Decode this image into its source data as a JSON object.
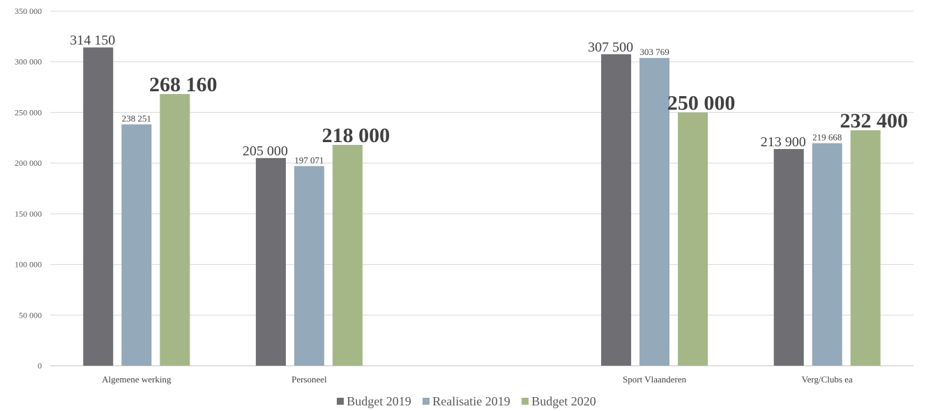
{
  "chart_data": {
    "type": "bar",
    "title": "",
    "xlabel": "",
    "ylabel": "",
    "categories": [
      "Algemene werking",
      "Personeel",
      "",
      "Sport Vlaanderen",
      "Verg/Clubs ea"
    ],
    "ylim": [
      0,
      350000
    ],
    "yticks": [
      0,
      50000,
      100000,
      150000,
      200000,
      250000,
      300000,
      350000
    ],
    "ytick_labels": [
      "0",
      "50 000",
      "100 000",
      "150 000",
      "200 000",
      "250 000",
      "300 000",
      "350 000"
    ],
    "grid": true,
    "legend_position": "bottom",
    "series": [
      {
        "name": "Budget 2019",
        "color": "#6e6e73",
        "values": [
          314150,
          205000,
          null,
          307500,
          213900
        ],
        "labels": [
          "314 150",
          "205 000",
          "",
          "307 500",
          "213 900"
        ]
      },
      {
        "name": "Realisatie 2019",
        "color": "#94a9b9",
        "values": [
          238251,
          197071,
          null,
          303769,
          219668
        ],
        "labels": [
          "238 251",
          "197 071",
          "",
          "303 769",
          "219 668"
        ]
      },
      {
        "name": "Budget 2020",
        "color": "#a6b787",
        "values": [
          268160,
          218000,
          null,
          250000,
          232400
        ],
        "labels": [
          "268 160",
          "218 000",
          "",
          "250 000",
          "232 400"
        ]
      }
    ]
  }
}
